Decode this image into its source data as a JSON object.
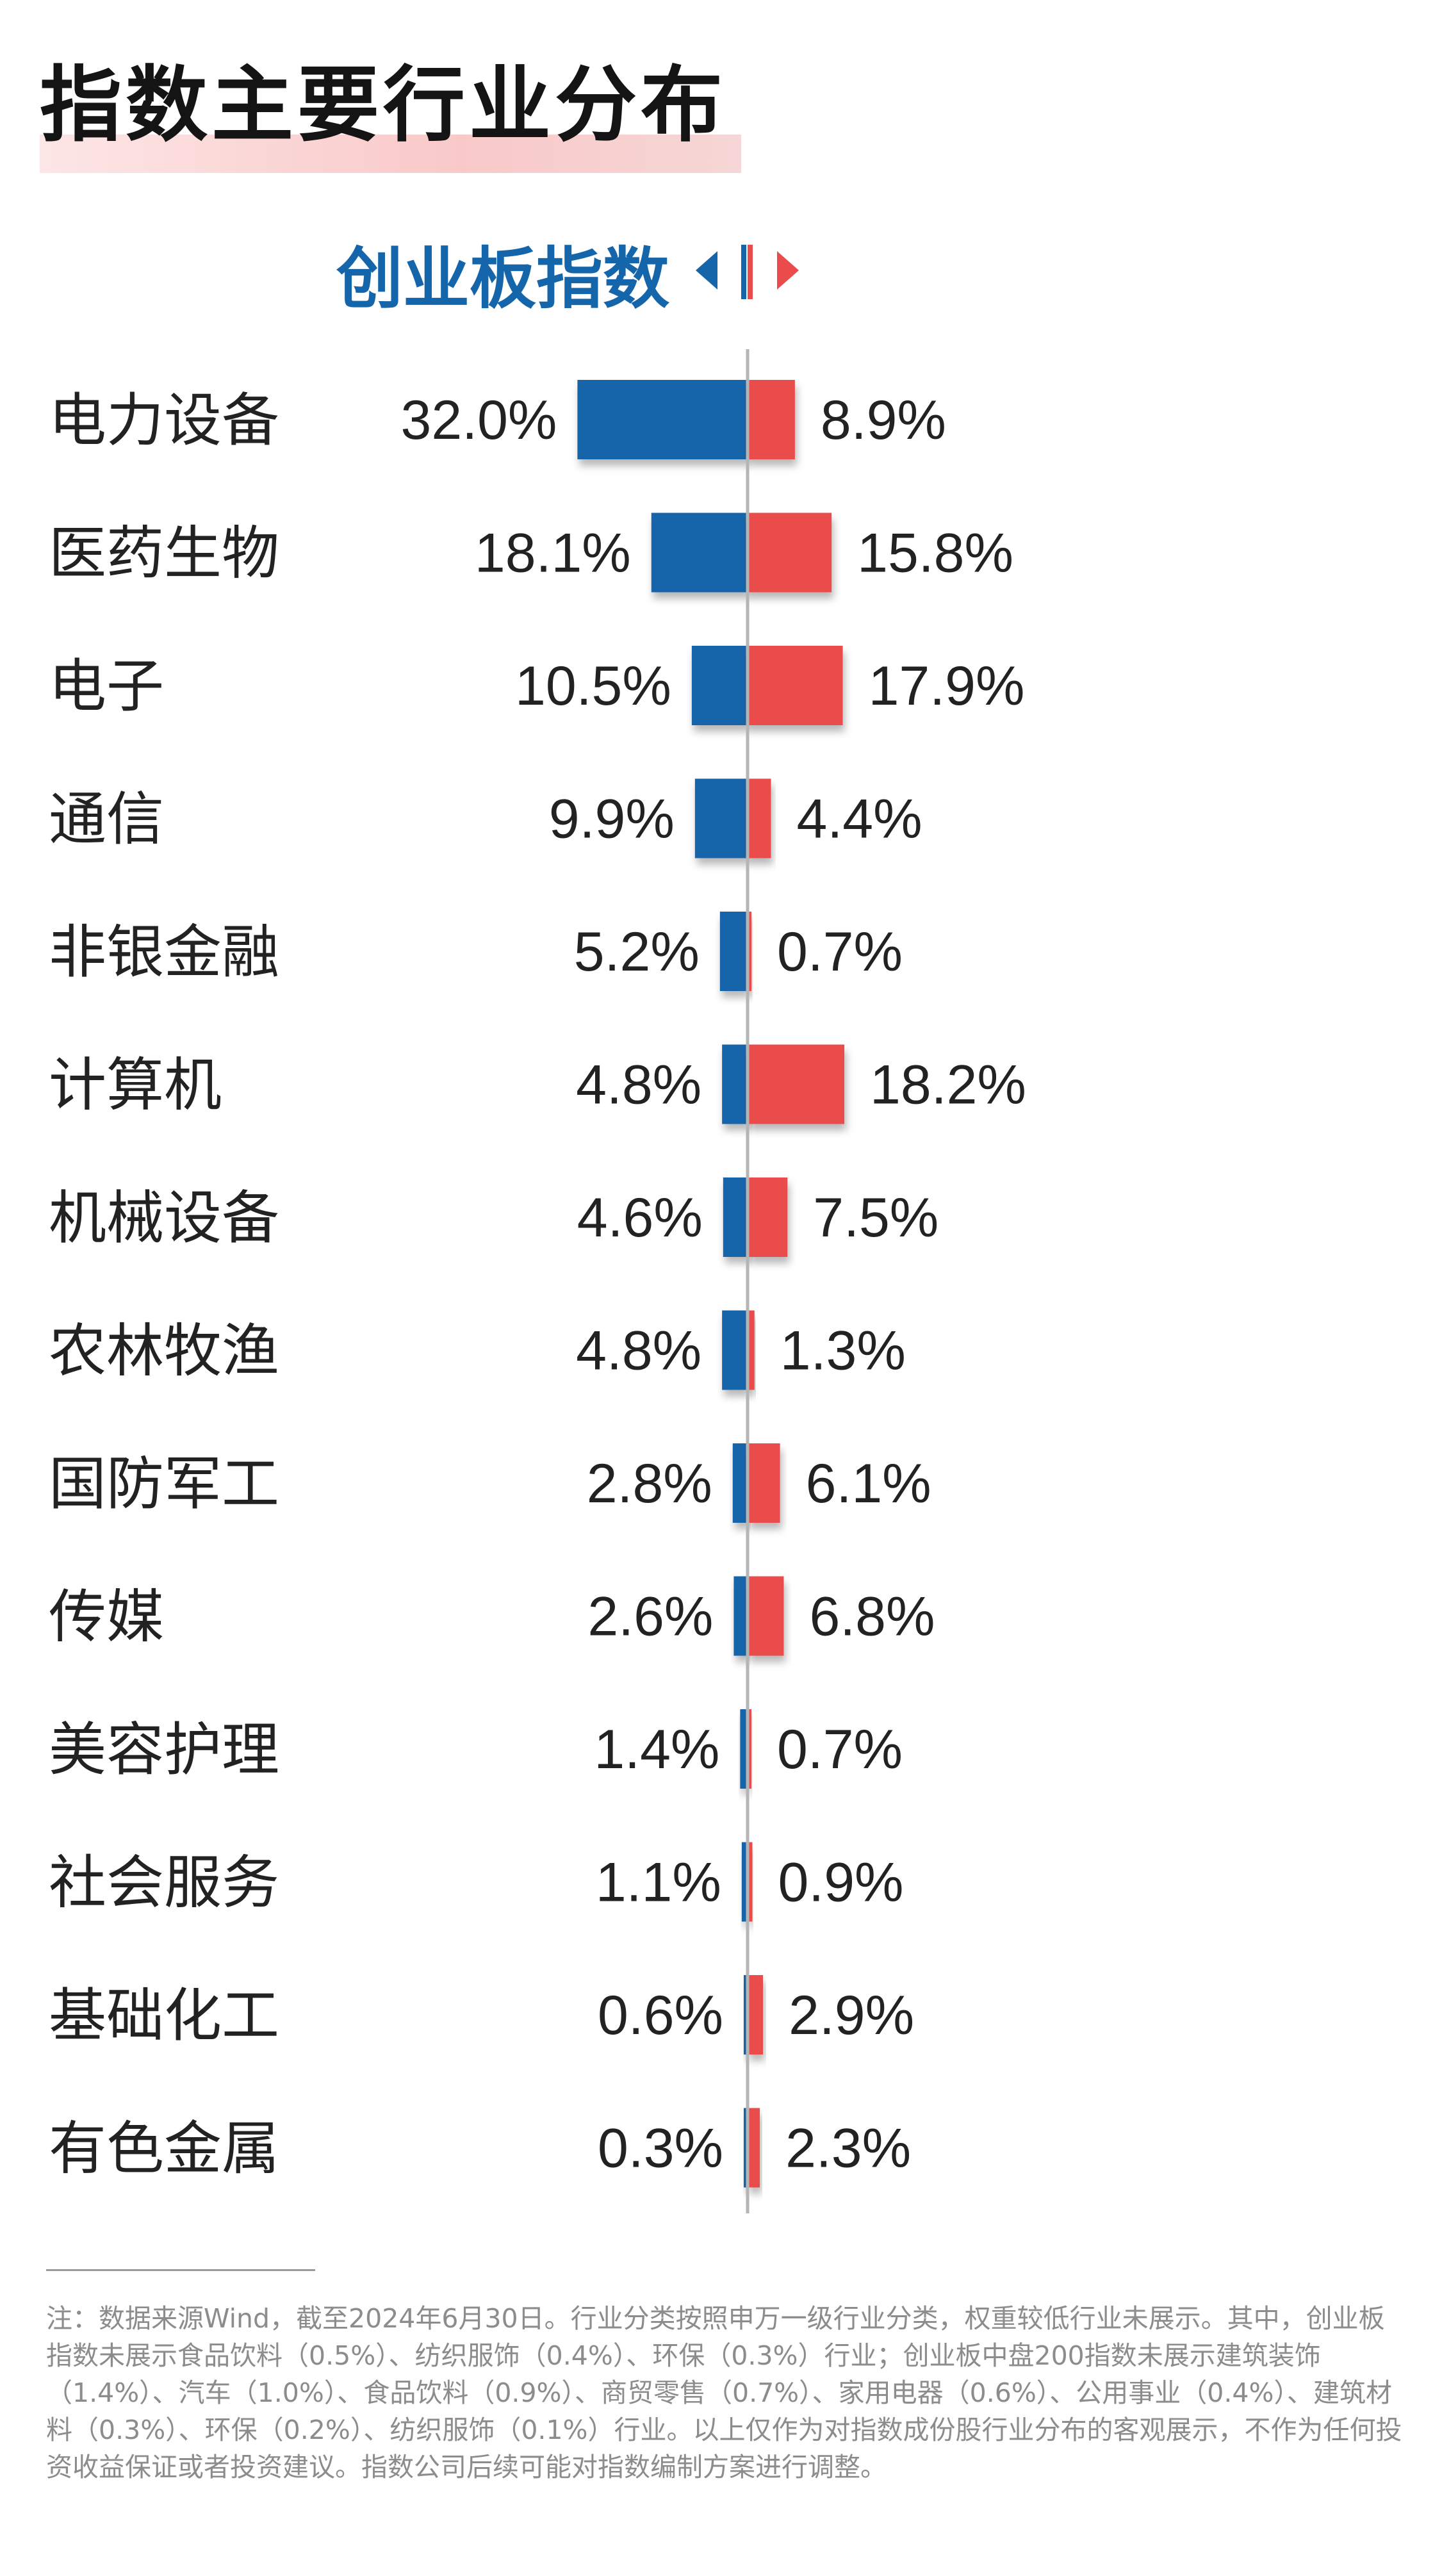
{
  "title": "指数主要行业分布",
  "legend": {
    "left": "创业板指数",
    "right": "创业板中盘200指数"
  },
  "colors": {
    "left": "#1565aa",
    "right": "#ea4c4c",
    "axis": "#b5b5b5",
    "title_highlight": "#f8caca"
  },
  "chart_data": {
    "type": "bar",
    "orientation": "horizontal-diverging",
    "categories": [
      "电力设备",
      "医药生物",
      "电子",
      "通信",
      "非银金融",
      "计算机",
      "机械设备",
      "农林牧渔",
      "国防军工",
      "传媒",
      "美容护理",
      "社会服务",
      "基础化工",
      "有色金属"
    ],
    "series": [
      {
        "name": "创业板指数",
        "values": [
          32.0,
          18.1,
          10.5,
          9.9,
          5.2,
          4.8,
          4.6,
          4.8,
          2.8,
          2.6,
          1.4,
          1.1,
          0.6,
          0.3
        ],
        "labels": [
          "32.0%",
          "18.1%",
          "10.5%",
          "9.9%",
          "5.2%",
          "4.8%",
          "4.6%",
          "4.8%",
          "2.8%",
          "2.6%",
          "1.4%",
          "1.1%",
          "0.6%",
          "0.3%"
        ]
      },
      {
        "name": "创业板中盘200指数",
        "values": [
          8.9,
          15.8,
          17.9,
          4.4,
          0.7,
          18.2,
          7.5,
          1.3,
          6.1,
          6.8,
          0.7,
          0.9,
          2.9,
          2.3
        ],
        "labels": [
          "8.9%",
          "15.8%",
          "17.9%",
          "4.4%",
          "0.7%",
          "18.2%",
          "7.5%",
          "1.3%",
          "6.1%",
          "6.8%",
          "0.7%",
          "0.9%",
          "2.9%",
          "2.3%"
        ]
      }
    ],
    "unit": "%"
  },
  "footnote": "注：数据来源Wind，截至2024年6月30日。行业分类按照申万一级行业分类，权重较低行业未展示。其中，创业板指数未展示食品饮料（0.5%）、纺织服饰（0.4%）、环保（0.3%）行业；创业板中盘200指数未展示建筑装饰（1.4%）、汽车（1.0%）、食品饮料（0.9%）、商贸零售（0.7%）、家用电器（0.6%）、公用事业（0.4%）、建筑材料（0.3%）、环保（0.2%）、纺织服饰（0.1%）行业。以上仅作为对指数成份股行业分布的客观展示，不作为任何投资收益保证或者投资建议。指数公司后续可能对指数编制方案进行调整。"
}
